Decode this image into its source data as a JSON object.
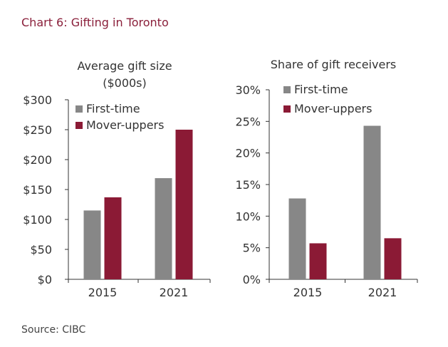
{
  "figure": {
    "title": "Chart 6: Gifting in Toronto",
    "source": "Source: CIBC",
    "colors": {
      "first_time": "#878787",
      "mover_uppers": "#8b1a35",
      "title": "#8a1f3a"
    }
  },
  "chart_data": [
    {
      "type": "bar",
      "title_lines": [
        "Average gift size",
        "($000s)"
      ],
      "categories": [
        "2015",
        "2021"
      ],
      "series": [
        {
          "name": "First-time",
          "values": [
            115,
            169
          ]
        },
        {
          "name": "Mover-uppers",
          "values": [
            137,
            250
          ]
        }
      ],
      "ylim": [
        0,
        300
      ],
      "yticks": [
        0,
        50,
        100,
        150,
        200,
        250,
        300
      ],
      "ytick_labels": [
        "$0",
        "$50",
        "$100",
        "$150",
        "$200",
        "$250",
        "$300"
      ],
      "legend": "top-left",
      "grid": false
    },
    {
      "type": "bar",
      "title_lines": [
        "Share of gift receivers"
      ],
      "categories": [
        "2015",
        "2021"
      ],
      "series": [
        {
          "name": "First-time",
          "values": [
            12.8,
            24.3
          ]
        },
        {
          "name": "Mover-uppers",
          "values": [
            5.7,
            6.5
          ]
        }
      ],
      "ylim": [
        0,
        30
      ],
      "yticks": [
        0,
        5,
        10,
        15,
        20,
        25,
        30
      ],
      "ytick_labels": [
        "0%",
        "5%",
        "10%",
        "15%",
        "20%",
        "25%",
        "30%"
      ],
      "legend": "top-left",
      "grid": false
    }
  ]
}
